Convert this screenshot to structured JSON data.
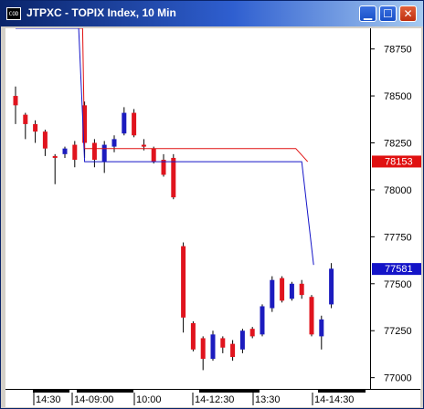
{
  "window": {
    "title": "JTPXC - TOPIX Index, 10 Min",
    "icon_label": "COD",
    "buttons": [
      "minimize",
      "maximize",
      "close"
    ]
  },
  "colors": {
    "up": "#1c1cbf",
    "down": "#e0141e",
    "upper_line": "#e01010",
    "lower_line": "#1414c8",
    "price_badge_red": "#e01010",
    "price_badge_blue": "#1414c8"
  },
  "badges": {
    "upper": "78153",
    "lower": "77581"
  },
  "chart_data": {
    "type": "candlestick",
    "title": "JTPXC - TOPIX Index, 10 Min",
    "y_axis": {
      "position": "right",
      "ticks": [
        77000,
        77250,
        77500,
        77750,
        78000,
        78250,
        78500,
        78750
      ],
      "ylim": [
        76940,
        78860
      ]
    },
    "x_axis": {
      "tick_labels": [
        "14:30",
        "14-09:00",
        "10:00",
        "14-12:30",
        "13:30",
        "14-14:30"
      ]
    },
    "candles": [
      {
        "open": 78500,
        "high": 78550,
        "close": 78450,
        "low": 78350
      },
      {
        "open": 78400,
        "high": 78410,
        "close": 78350,
        "low": 78270
      },
      {
        "open": 78350,
        "high": 78370,
        "close": 78310,
        "low": 78250
      },
      {
        "open": 78310,
        "high": 78320,
        "close": 78220,
        "low": 78180
      },
      {
        "open": 78180,
        "high": 78190,
        "close": 78170,
        "low": 78030
      },
      {
        "open": 78190,
        "high": 78230,
        "close": 78220,
        "low": 78170
      },
      {
        "open": 78240,
        "high": 78260,
        "close": 78160,
        "low": 78120
      },
      {
        "open": 78450,
        "high": 78470,
        "close": 78250,
        "low": 78170
      },
      {
        "open": 78250,
        "high": 78270,
        "close": 78160,
        "low": 78120
      },
      {
        "open": 78150,
        "high": 78260,
        "close": 78240,
        "low": 78090
      },
      {
        "open": 78230,
        "high": 78290,
        "close": 78270,
        "low": 78200
      },
      {
        "open": 78300,
        "high": 78440,
        "close": 78410,
        "low": 78290
      },
      {
        "open": 78410,
        "high": 78430,
        "close": 78290,
        "low": 78280
      },
      {
        "open": 78240,
        "high": 78270,
        "close": 78230,
        "low": 78210
      },
      {
        "open": 78220,
        "high": 78230,
        "close": 78150,
        "low": 78140
      },
      {
        "open": 78160,
        "high": 78190,
        "close": 78080,
        "low": 78070
      },
      {
        "open": 78170,
        "high": 78190,
        "close": 77960,
        "low": 77950
      },
      {
        "open": 77700,
        "high": 77720,
        "close": 77320,
        "low": 77240
      },
      {
        "open": 77290,
        "high": 77300,
        "close": 77150,
        "low": 77140
      },
      {
        "open": 77210,
        "high": 77220,
        "close": 77100,
        "low": 77040
      },
      {
        "open": 77100,
        "high": 77250,
        "close": 77230,
        "low": 77090
      },
      {
        "open": 77210,
        "high": 77220,
        "close": 77160,
        "low": 77130
      },
      {
        "open": 77180,
        "high": 77200,
        "close": 77110,
        "low": 77090
      },
      {
        "open": 77150,
        "high": 77260,
        "close": 77250,
        "low": 77130
      },
      {
        "open": 77260,
        "high": 77270,
        "close": 77220,
        "low": 77210
      },
      {
        "open": 77230,
        "high": 77390,
        "close": 77380,
        "low": 77220
      },
      {
        "open": 77370,
        "high": 77540,
        "close": 77520,
        "low": 77350
      },
      {
        "open": 77530,
        "high": 77540,
        "close": 77410,
        "low": 77400
      },
      {
        "open": 77420,
        "high": 77510,
        "close": 77500,
        "low": 77410
      },
      {
        "open": 77500,
        "high": 77520,
        "close": 77440,
        "low": 77420
      },
      {
        "open": 77430,
        "high": 77440,
        "close": 77230,
        "low": 77220
      },
      {
        "open": 77220,
        "high": 77330,
        "close": 77310,
        "low": 77150
      },
      {
        "open": 77390,
        "high": 77610,
        "close": 77580,
        "low": 77370
      }
    ],
    "lines": [
      {
        "name": "upper",
        "points": [
          [
            0,
            78860
          ],
          [
            6.8,
            78860
          ],
          [
            7,
            78220
          ],
          [
            28.4,
            78220
          ],
          [
            29.6,
            78150
          ]
        ]
      },
      {
        "name": "lower",
        "points": [
          [
            0,
            78860
          ],
          [
            6.4,
            78860
          ],
          [
            7,
            78150
          ],
          [
            29,
            78150
          ],
          [
            30.2,
            77600
          ]
        ]
      }
    ]
  }
}
